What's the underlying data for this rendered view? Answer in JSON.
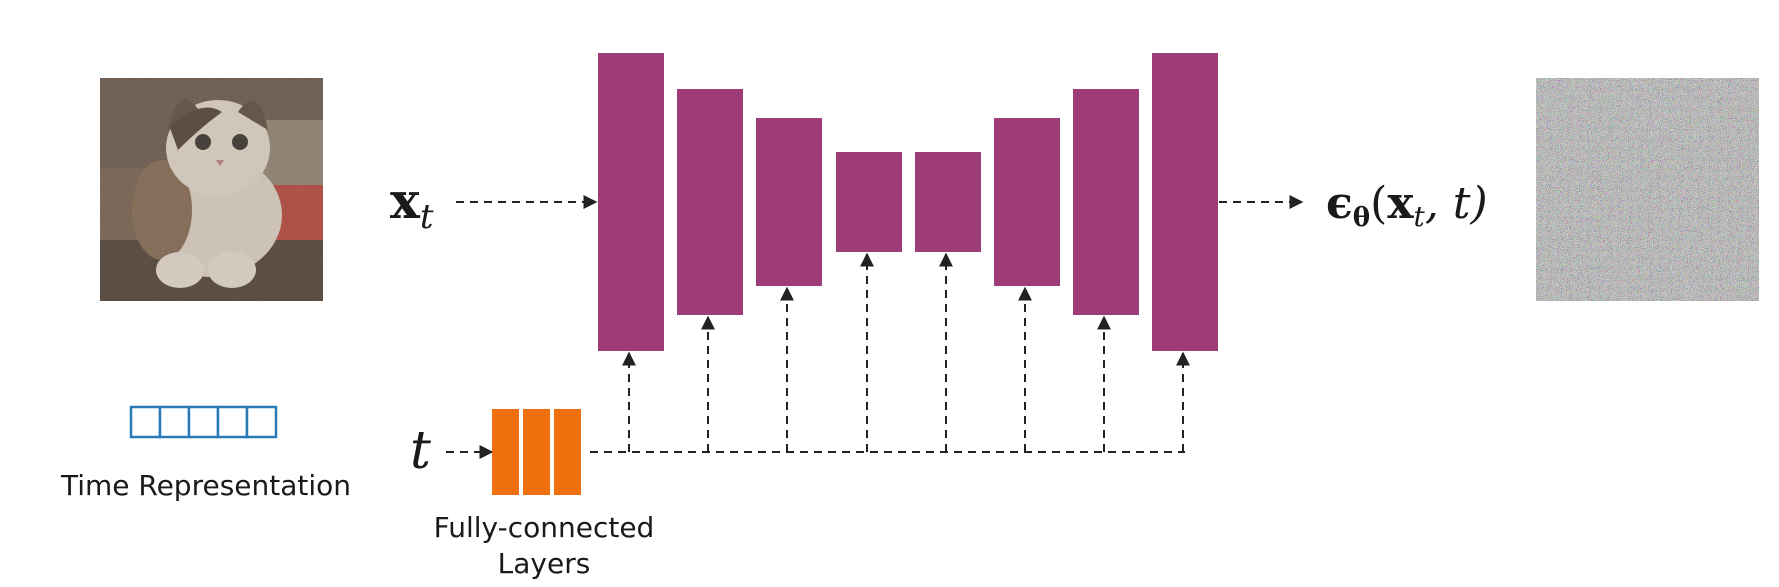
{
  "inputs": {
    "x_label_base": "x",
    "x_label_sub": "t",
    "t_label": "t"
  },
  "output": {
    "label_epsilon": "ϵ",
    "label_theta": "θ",
    "label_args_open": "(",
    "label_x": "x",
    "label_x_sub": "t",
    "label_args_rest": ", t)"
  },
  "time_representation": {
    "label": "Time Representation",
    "cells": 5
  },
  "fc_layers": {
    "label_line1": "Fully-connected",
    "label_line2": "Layers",
    "count": 3
  },
  "unet": {
    "block_count": 8
  },
  "colors": {
    "unet_block": "#9e3c78",
    "fc_layer": "#f07010",
    "time_cell_stroke": "#2a7ab8",
    "arrow": "#222222",
    "text": "#1a1a1a"
  },
  "icons": {
    "noisy_image": "noisy-cat-image",
    "noise_output": "gaussian-noise-image"
  }
}
